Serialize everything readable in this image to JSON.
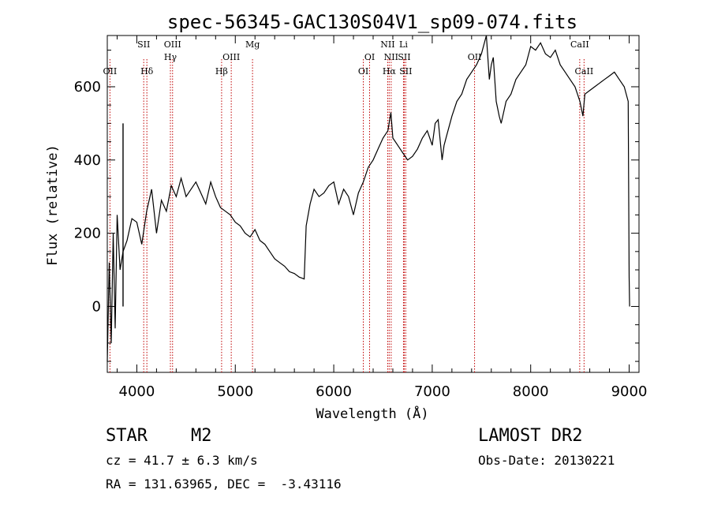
{
  "chart_data": {
    "type": "line",
    "title": "spec-56345-GAC130S04V1_sp09-074.fits",
    "xlabel": "Wavelength (Å)",
    "ylabel": "Flux (relative)",
    "xlim": [
      3700,
      9100
    ],
    "ylim": [
      -180,
      740
    ],
    "xticks": [
      4000,
      5000,
      6000,
      7000,
      8000,
      9000
    ],
    "yticks": [
      0,
      200,
      400,
      600
    ],
    "line_color": "#000000",
    "marker_color": "#c00000",
    "spectrum": {
      "x": [
        3700,
        3720,
        3740,
        3760,
        3780,
        3800,
        3830,
        3860,
        3900,
        3950,
        4000,
        4050,
        4100,
        4150,
        4200,
        4250,
        4300,
        4350,
        4400,
        4450,
        4500,
        4550,
        4600,
        4650,
        4700,
        4750,
        4800,
        4850,
        4900,
        4950,
        5000,
        5050,
        5100,
        5150,
        5200,
        5250,
        5300,
        5350,
        5400,
        5450,
        5500,
        5550,
        5600,
        5650,
        5700,
        5720,
        5740,
        5760,
        5780,
        5800,
        5850,
        5900,
        5950,
        6000,
        6050,
        6100,
        6150,
        6200,
        6250,
        6300,
        6350,
        6400,
        6450,
        6500,
        6550,
        6580,
        6600,
        6650,
        6700,
        6750,
        6800,
        6850,
        6900,
        6950,
        7000,
        7030,
        7060,
        7100,
        7120,
        7150,
        7200,
        7250,
        7300,
        7350,
        7400,
        7450,
        7500,
        7550,
        7580,
        7600,
        7620,
        7650,
        7680,
        7700,
        7750,
        7800,
        7850,
        7900,
        7950,
        8000,
        8050,
        8100,
        8150,
        8200,
        8250,
        8300,
        8350,
        8400,
        8450,
        8500,
        8530,
        8550,
        8600,
        8650,
        8700,
        8750,
        8800,
        8850,
        8900,
        8950,
        8990,
        9000,
        9005
      ],
      "y": [
        -150,
        120,
        -100,
        200,
        -60,
        250,
        100,
        150,
        180,
        240,
        230,
        170,
        260,
        320,
        200,
        290,
        260,
        330,
        300,
        350,
        300,
        320,
        340,
        310,
        280,
        340,
        300,
        270,
        260,
        250,
        230,
        220,
        200,
        190,
        210,
        180,
        170,
        150,
        130,
        120,
        110,
        95,
        90,
        80,
        75,
        220,
        250,
        280,
        300,
        320,
        300,
        310,
        330,
        340,
        280,
        320,
        300,
        250,
        310,
        340,
        380,
        400,
        430,
        460,
        480,
        530,
        460,
        440,
        420,
        400,
        410,
        430,
        460,
        480,
        440,
        500,
        510,
        400,
        440,
        470,
        520,
        560,
        580,
        620,
        640,
        660,
        690,
        760,
        620,
        660,
        680,
        560,
        520,
        500,
        560,
        580,
        620,
        640,
        660,
        710,
        700,
        720,
        690,
        680,
        700,
        660,
        640,
        620,
        600,
        560,
        520,
        580,
        590,
        600,
        610,
        620,
        630,
        640,
        620,
        600,
        560,
        80,
        0
      ]
    },
    "spike": {
      "x": 3860,
      "y_low": 0,
      "y_high": 500
    },
    "emission_lines": [
      {
        "label": "OII",
        "x": 3727,
        "row": 2
      },
      {
        "label": "SII",
        "x": 4070,
        "row": 0
      },
      {
        "label": "Hδ",
        "x": 4102,
        "row": 2
      },
      {
        "label": "OIII",
        "x": 4363,
        "row": 0
      },
      {
        "label": "Hγ",
        "x": 4341,
        "row": 1
      },
      {
        "label": "Hβ",
        "x": 4861,
        "row": 2
      },
      {
        "label": "OIII",
        "x": 4959,
        "row": 1
      },
      {
        "label": "Mg",
        "x": 5175,
        "row": 0
      },
      {
        "label": "OI",
        "x": 6300,
        "row": 2
      },
      {
        "label": "OI",
        "x": 6364,
        "row": 1
      },
      {
        "label": "NII",
        "x": 6548,
        "row": 0
      },
      {
        "label": "NII",
        "x": 6583,
        "row": 1
      },
      {
        "label": "Hα",
        "x": 6563,
        "row": 2
      },
      {
        "label": "Li",
        "x": 6708,
        "row": 0
      },
      {
        "label": "SII",
        "x": 6716,
        "row": 1
      },
      {
        "label": "SII",
        "x": 6731,
        "row": 2
      },
      {
        "label": "OII",
        "x": 7430,
        "row": 1
      },
      {
        "label": "CaII",
        "x": 8498,
        "row": 0
      },
      {
        "label": "CaII",
        "x": 8542,
        "row": 2
      }
    ]
  },
  "footer": {
    "object_type": "STAR",
    "subclass": "M2",
    "survey": "LAMOST DR2",
    "cz": "cz = 41.7 ± 6.3 km/s",
    "obs_date": "Obs-Date: 20130221",
    "coords": "RA = 131.63965, DEC =  -3.43116"
  }
}
